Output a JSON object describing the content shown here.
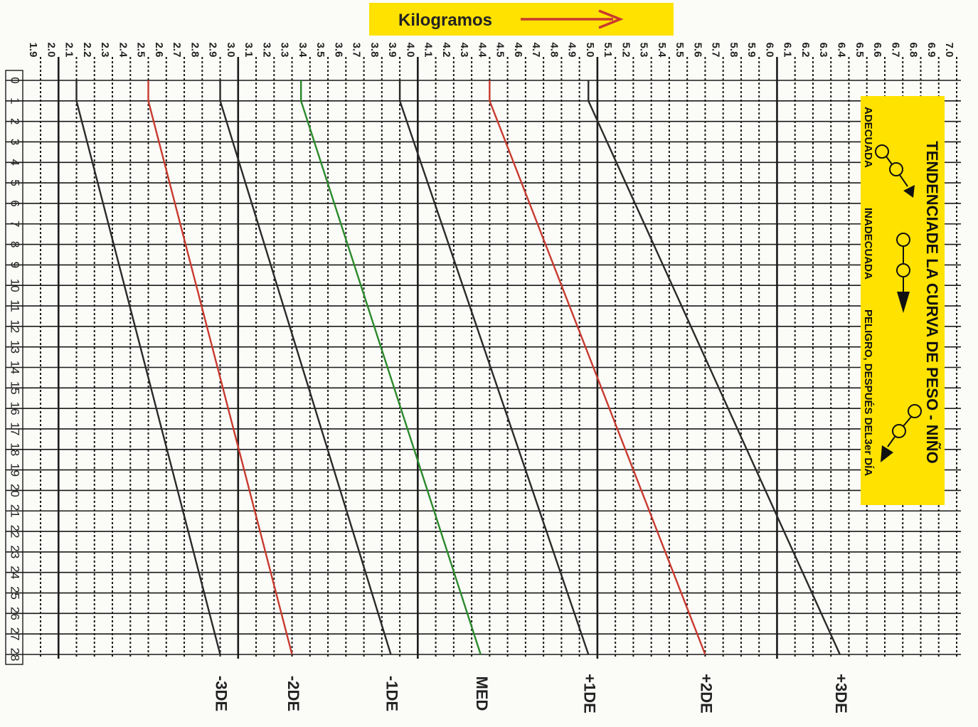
{
  "chart_data": {
    "type": "line",
    "title": "Kilogramos",
    "xlabel": "",
    "ylabel": "",
    "x_ticks": [
      0,
      1,
      2,
      3,
      4,
      5,
      6,
      7,
      8,
      9,
      10,
      11,
      12,
      13,
      14,
      15,
      16,
      17,
      18,
      19,
      20,
      21,
      22,
      23,
      24,
      25,
      26,
      27,
      28
    ],
    "y_ticks": [
      "1.9",
      "2.0",
      "2.1",
      "2.2",
      "2.3",
      "2.4",
      "2.5",
      "2.6",
      "2.7",
      "2.8",
      "2.9",
      "3.0",
      "3.1",
      "3.2",
      "3.3",
      "3.4",
      "3.5",
      "3.6",
      "3.7",
      "3.8",
      "3.9",
      "4.0",
      "4.1",
      "4.2",
      "4.3",
      "4.4",
      "4.5",
      "4.6",
      "4.7",
      "4.8",
      "4.9",
      "5.0",
      "5.1",
      "5.2",
      "5.3",
      "5.4",
      "5.5",
      "5.6",
      "5.7",
      "5.8",
      "5.9",
      "6.0",
      "6.1",
      "6.2",
      "6.3",
      "6.4",
      "6.5",
      "6.6",
      "6.7",
      "6.8",
      "6.9",
      "7.0"
    ],
    "xlim": [
      0,
      28
    ],
    "ylim": [
      1.9,
      7.0
    ],
    "highlighted_ticks": [
      "2.0",
      "3.0",
      "4.0",
      "5.0",
      "6.0"
    ],
    "series": [
      {
        "name": "-3DE",
        "color": "#2a2a2a",
        "x": [
          0,
          1,
          28
        ],
        "y": [
          2.1,
          2.1,
          2.9
        ]
      },
      {
        "name": "-2DE",
        "color": "#c83a2e",
        "x": [
          0,
          1,
          28
        ],
        "y": [
          2.5,
          2.5,
          3.3
        ]
      },
      {
        "name": "-1DE",
        "color": "#2a2a2a",
        "x": [
          0,
          1,
          28
        ],
        "y": [
          2.9,
          2.9,
          3.85
        ]
      },
      {
        "name": "MED",
        "color": "#2a8a2a",
        "x": [
          0,
          1,
          28
        ],
        "y": [
          3.35,
          3.35,
          4.35
        ]
      },
      {
        "name": "+1DE",
        "color": "#2a2a2a",
        "x": [
          0,
          1,
          28
        ],
        "y": [
          3.9,
          3.9,
          4.95
        ]
      },
      {
        "name": "+2DE",
        "color": "#c83a2e",
        "x": [
          0,
          1,
          28
        ],
        "y": [
          4.4,
          4.4,
          5.6
        ]
      },
      {
        "name": "+3DE",
        "color": "#2a2a2a",
        "x": [
          0,
          1,
          28
        ],
        "y": [
          4.95,
          4.95,
          6.35
        ]
      }
    ]
  },
  "legend": {
    "title": "TENDENCIADE LA CURVA DE PESO - NIÑO",
    "items": [
      "ADECUADA",
      "INADECUADA",
      "PELIGRO, DESPUÉS DEL3er DÍA"
    ]
  },
  "colors": {
    "banner": "#ffe200",
    "grid": "#1a1a1a",
    "red": "#c83a2e",
    "green": "#2a8a2a"
  }
}
